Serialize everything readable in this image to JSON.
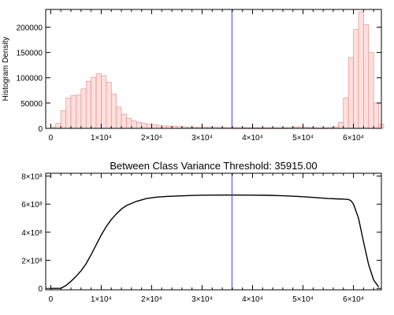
{
  "colors": {
    "bar_fill": "#fde0de",
    "bar_stroke": "#e8837d",
    "threshold_line": "#3b3bff",
    "curve": "#000000",
    "axes": "#000000"
  },
  "threshold_x": 35915,
  "chart_data": [
    {
      "type": "bar",
      "title": "",
      "xlabel": "",
      "ylabel": "Histogram Density",
      "xlim": [
        -1000,
        65535
      ],
      "ylim": [
        0,
        235000
      ],
      "x_ticks": [
        0,
        10000,
        20000,
        30000,
        40000,
        50000,
        60000
      ],
      "x_tick_labels": [
        "0",
        "1×10⁴",
        "2×10⁴",
        "3×10⁴",
        "4×10⁴",
        "5×10⁴",
        "6×10⁴"
      ],
      "y_ticks": [
        0,
        50000,
        100000,
        150000,
        200000
      ],
      "y_tick_labels": [
        "0",
        "50000",
        "100000",
        "150000",
        "200000"
      ],
      "bin_width": 1000,
      "bin_start": 0,
      "values": [
        3000,
        10000,
        35000,
        60000,
        65000,
        66000,
        78000,
        93000,
        101000,
        108000,
        104000,
        91000,
        68000,
        42000,
        28000,
        20000,
        15000,
        12000,
        10000,
        8000,
        7000,
        6000,
        5000,
        4500,
        4000,
        3500,
        3000,
        2800,
        2600,
        2400,
        2200,
        2000,
        1900,
        1800,
        1700,
        1600,
        1500,
        1500,
        1400,
        1400,
        1300,
        1300,
        1200,
        1200,
        1200,
        1200,
        1300,
        1500,
        2500,
        3200,
        2500,
        1500,
        1200,
        1000,
        1200,
        1600,
        3000,
        12000,
        60000,
        140000,
        195000,
        230000,
        205000,
        150000,
        50000,
        8000
      ],
      "grid": false,
      "marker_line_x": 35915
    },
    {
      "type": "line",
      "title": "Between Class Variance Threshold: 35915.00",
      "xlabel": "",
      "ylabel": "",
      "xlim": [
        -1000,
        65535
      ],
      "ylim": [
        -10000000.0,
        820000000.0
      ],
      "x_ticks": [
        0,
        10000,
        20000,
        30000,
        40000,
        50000,
        60000
      ],
      "x_tick_labels": [
        "0",
        "1×10⁴",
        "2×10⁴",
        "3×10⁴",
        "4×10⁴",
        "5×10⁴",
        "6×10⁴"
      ],
      "y_ticks": [
        0,
        200000000,
        400000000,
        600000000,
        800000000
      ],
      "y_tick_labels": [
        "0",
        "2×10⁸",
        "4×10⁸",
        "6×10⁸",
        "8×10⁸"
      ],
      "series": [
        {
          "x": [
            0,
            1000,
            2000,
            3000,
            4000,
            5000,
            6000,
            7000,
            8000,
            9000,
            10000,
            11000,
            12000,
            13000,
            14000,
            15000,
            17000,
            19000,
            21000,
            23000,
            25000,
            28000,
            31000,
            34000,
            37000,
            40000,
            43000,
            46000,
            49000,
            52000,
            55000,
            57000,
            58000,
            59000,
            59500,
            60000,
            61000,
            62000,
            63000,
            64000,
            65000
          ],
          "y": [
            0,
            0,
            1000000,
            20000000,
            50000000,
            85000000,
            125000000,
            175000000,
            240000000,
            310000000,
            380000000,
            440000000,
            490000000,
            530000000,
            565000000,
            590000000,
            620000000,
            640000000,
            650000000,
            655000000,
            658000000,
            662000000,
            664000000,
            665000000,
            665000000,
            664000000,
            663000000,
            660000000,
            655000000,
            648000000,
            640000000,
            637000000,
            636000000,
            633000000,
            625000000,
            600000000,
            500000000,
            330000000,
            170000000,
            60000000,
            10000000
          ]
        }
      ],
      "grid": false,
      "marker_line_x": 35915
    }
  ]
}
